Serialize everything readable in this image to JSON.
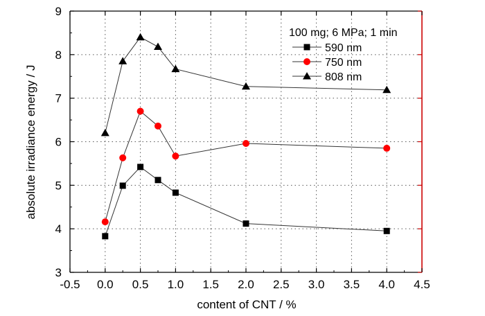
{
  "chart_data": {
    "type": "line",
    "title": "",
    "xlabel": "content of CNT / %",
    "ylabel": "absolute irradiance energy / J",
    "xlim": [
      -0.5,
      4.5
    ],
    "ylim": [
      3,
      9
    ],
    "xticks": [
      "-0.5",
      "0.0",
      "0.5",
      "1.0",
      "1.5",
      "2.0",
      "2.5",
      "3.0",
      "3.5",
      "4.0",
      "4.5"
    ],
    "yticks": [
      "3",
      "4",
      "5",
      "6",
      "7",
      "8",
      "9"
    ],
    "grid": "dotted",
    "legend_title": "100 mg; 6 MPa; 1 min",
    "legend_position": "top-right",
    "x": [
      0.0,
      0.25,
      0.5,
      0.75,
      1.0,
      2.0,
      4.0
    ],
    "series": [
      {
        "name": "590 nm",
        "marker": "square",
        "color": "#000000",
        "values": [
          3.83,
          4.99,
          5.42,
          5.12,
          4.83,
          4.12,
          3.95
        ]
      },
      {
        "name": "750 nm",
        "marker": "circle",
        "color": "#ff0000",
        "values": [
          4.16,
          5.63,
          6.7,
          6.36,
          5.67,
          5.96,
          5.85
        ]
      },
      {
        "name": "808 nm",
        "marker": "triangle",
        "color": "#000000",
        "values": [
          6.2,
          7.85,
          8.4,
          8.18,
          7.67,
          7.27,
          7.19
        ]
      }
    ],
    "right_axis_color": "#cc0000"
  }
}
